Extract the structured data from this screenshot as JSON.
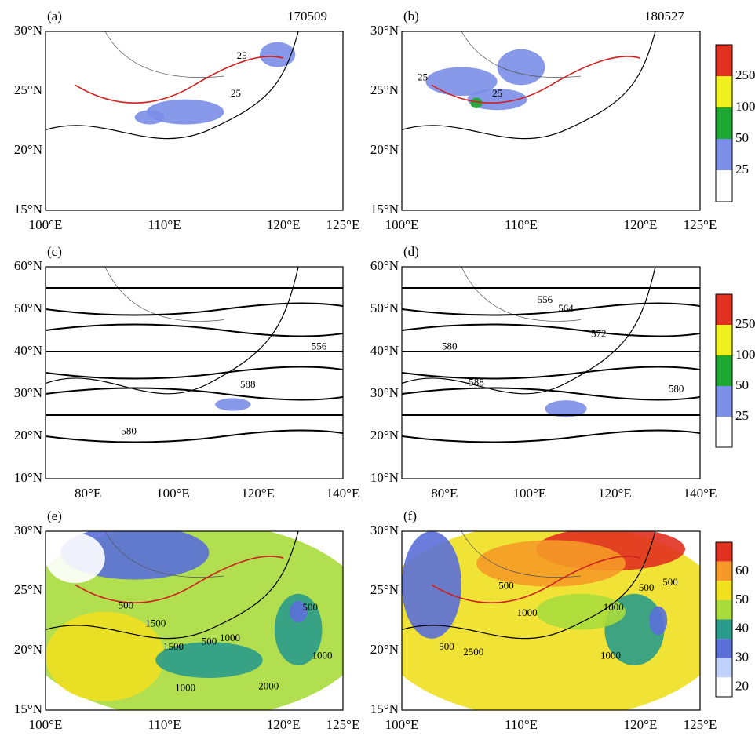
{
  "panels": [
    {
      "label": "(a)",
      "date": "170509",
      "x_ticks": [
        "100°E",
        "110°E",
        "120°E",
        "125°E"
      ],
      "y_ticks": [
        "15°N",
        "20°N",
        "25°N",
        "30°N"
      ],
      "contour_labels": [
        "25",
        "25"
      ]
    },
    {
      "label": "(b)",
      "date": "180527",
      "x_ticks": [
        "100°E",
        "110°E",
        "120°E",
        "125°E"
      ],
      "y_ticks": [
        "15°N",
        "20°N",
        "25°N",
        "30°N"
      ],
      "contour_labels": [
        "25",
        "25"
      ]
    },
    {
      "label": "(c)",
      "x_ticks": [
        "80°E",
        "100°E",
        "120°E",
        "140°E"
      ],
      "y_ticks": [
        "10°N",
        "20°N",
        "30°N",
        "40°N",
        "50°N",
        "60°N"
      ],
      "contour_labels": [
        "588",
        "580",
        "556"
      ]
    },
    {
      "label": "(d)",
      "x_ticks": [
        "80°E",
        "100°E",
        "120°E",
        "140°E"
      ],
      "y_ticks": [
        "10°N",
        "20°N",
        "30°N",
        "40°N",
        "50°N",
        "60°N"
      ],
      "contour_labels": [
        "556",
        "564",
        "572",
        "580",
        "588",
        "580"
      ]
    },
    {
      "label": "(e)",
      "x_ticks": [
        "100°E",
        "110°E",
        "120°E",
        "125°E"
      ],
      "y_ticks": [
        "15°N",
        "20°N",
        "25°N",
        "30°N"
      ],
      "contour_labels": [
        "500",
        "1500",
        "500",
        "1000",
        "1500",
        "1000",
        "2000",
        "500",
        "1000"
      ]
    },
    {
      "label": "(f)",
      "x_ticks": [
        "100°E",
        "110°E",
        "120°E",
        "125°E"
      ],
      "y_ticks": [
        "15°N",
        "20°N",
        "25°N",
        "30°N"
      ],
      "contour_labels": [
        "500",
        "1000",
        "2500",
        "500",
        "1000",
        "500",
        "1000",
        "500"
      ]
    }
  ],
  "colorbars": [
    {
      "labels": [
        "250",
        "100",
        "50",
        "25"
      ]
    },
    {
      "labels": [
        "250",
        "100",
        "50",
        "25"
      ]
    },
    {
      "labels": [
        "60",
        "50",
        "40",
        "30",
        "20"
      ]
    }
  ]
}
